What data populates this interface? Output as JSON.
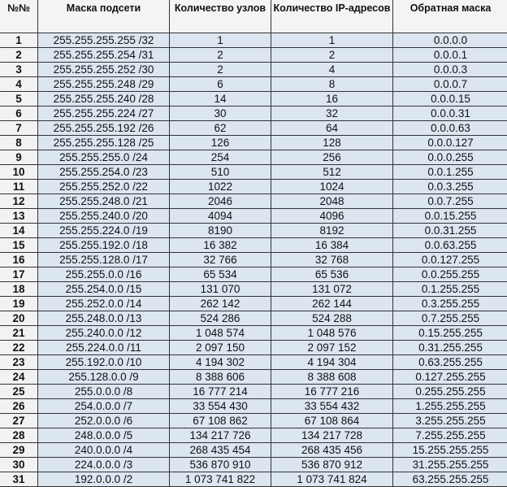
{
  "headers": [
    "№№",
    "Маска подсети",
    "Количество узлов",
    "Количество IP-адресов",
    "Обратная маска"
  ],
  "colors": {
    "cell_bg": "#dce6f1",
    "num_bg": "#f2f2f2",
    "border": "#333333"
  },
  "rows": [
    [
      "1",
      "255.255.255.255 /32",
      "1",
      "1",
      "0.0.0.0"
    ],
    [
      "2",
      "255.255.255.254 /31",
      "2",
      "2",
      "0.0.0.1"
    ],
    [
      "3",
      "255.255.255.252 /30",
      "2",
      "4",
      "0.0.0.3"
    ],
    [
      "4",
      "255.255.255.248 /29",
      "6",
      "8",
      "0.0.0.7"
    ],
    [
      "5",
      "255.255.255.240 /28",
      "14",
      "16",
      "0.0.0.15"
    ],
    [
      "6",
      "255.255.255.224 /27",
      "30",
      "32",
      "0.0.0.31"
    ],
    [
      "7",
      "255.255.255.192 /26",
      "62",
      "64",
      "0.0.0.63"
    ],
    [
      "8",
      "255.255.255.128 /25",
      "126",
      "128",
      "0.0.0.127"
    ],
    [
      "9",
      "255.255.255.0 /24",
      "254",
      "256",
      "0.0.0.255"
    ],
    [
      "10",
      "255.255.254.0 /23",
      "510",
      "512",
      "0.0.1.255"
    ],
    [
      "11",
      "255.255.252.0 /22",
      "1022",
      "1024",
      "0.0.3.255"
    ],
    [
      "12",
      "255.255.248.0 /21",
      "2046",
      "2048",
      "0.0.7.255"
    ],
    [
      "13",
      "255.255.240.0 /20",
      "4094",
      "4096",
      "0.0.15.255"
    ],
    [
      "14",
      "255.255.224.0 /19",
      "8190",
      "8192",
      "0.0.31.255"
    ],
    [
      "15",
      "255.255.192.0 /18",
      "16 382",
      "16 384",
      "0.0.63.255"
    ],
    [
      "16",
      "255.255.128.0 /17",
      "32 766",
      "32 768",
      "0.0.127.255"
    ],
    [
      "17",
      "255.255.0.0 /16",
      "65 534",
      "65 536",
      "0.0.255.255"
    ],
    [
      "18",
      "255.254.0.0 /15",
      "131 070",
      "131 072",
      "0.1.255.255"
    ],
    [
      "19",
      "255.252.0.0 /14",
      "262 142",
      "262 144",
      "0.3.255.255"
    ],
    [
      "20",
      "255.248.0.0 /13",
      "524 286",
      "524 288",
      "0.7.255.255"
    ],
    [
      "21",
      "255.240.0.0 /12",
      "1 048 574",
      "1 048 576",
      "0.15.255.255"
    ],
    [
      "22",
      "255.224.0.0 /11",
      "2 097 150",
      "2 097 152",
      "0.31.255.255"
    ],
    [
      "23",
      "255.192.0.0 /10",
      "4 194 302",
      "4 194 304",
      "0.63.255.255"
    ],
    [
      "24",
      "255.128.0.0 /9",
      "8 388 606",
      "8 388 608",
      "0.127.255.255"
    ],
    [
      "25",
      "255.0.0.0 /8",
      "16 777 214",
      "16 777 216",
      "0.255.255.255"
    ],
    [
      "26",
      "254.0.0.0 /7",
      "33 554 430",
      "33 554 432",
      "1.255.255.255"
    ],
    [
      "27",
      "252.0.0.0 /6",
      "67 108 862",
      "67 108 864",
      "3.255.255.255"
    ],
    [
      "28",
      "248.0.0.0 /5",
      "134 217 726",
      "134 217 728",
      "7.255.255.255"
    ],
    [
      "29",
      "240.0.0.0 /4",
      "268 435 454",
      "268 435 456",
      "15.255.255.255"
    ],
    [
      "30",
      "224.0.0.0 /3",
      "536 870 910",
      "536 870 912",
      "31.255.255.255"
    ],
    [
      "31",
      "192.0.0.0 /2",
      "1 073 741 822",
      "1 073 741 824",
      "63.255.255.255"
    ]
  ]
}
